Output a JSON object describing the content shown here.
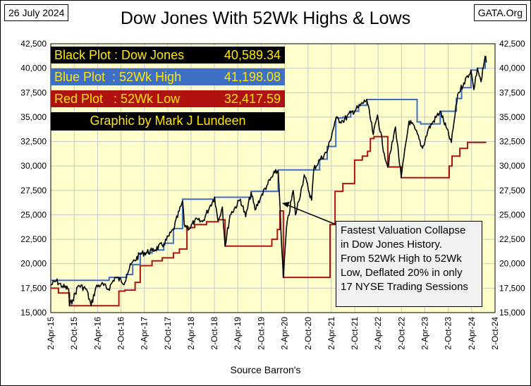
{
  "header": {
    "date": "26 July 2024",
    "source_tag": "GATA.Org",
    "title": "Dow Jones With 52Wk Highs & Lows"
  },
  "legend": {
    "black": {
      "label": "Black Plot : Dow Jones",
      "value": "40,589.34",
      "text_color": "#ffe600",
      "bg": "#000000"
    },
    "blue": {
      "label": "Blue Plot  : 52Wk High",
      "value": "41,198.08",
      "text_color": "#ffe600",
      "bg": "#3d6fc4"
    },
    "red": {
      "label": "Red Plot   : 52Wk Low",
      "value": "32,417.59",
      "text_color": "#ffe600",
      "bg": "#b01212"
    },
    "credit": {
      "label": "Graphic by Mark J Lundeen",
      "text_color": "#ffe600",
      "bg": "#000000"
    }
  },
  "annotation": {
    "lines": [
      "Fastest Valuation Collapse",
      "in Dow Jones History.",
      "From 52Wk High to 52Wk",
      "Low, Deflated 20% in only",
      "17 NYSE Trading Sessions"
    ],
    "points_to": "2020-03-01"
  },
  "xlabel": "Source Barron's",
  "colors": {
    "plot_bg": "#ffffcc",
    "grid": "#c8c8c8",
    "dow": "#000000",
    "high": "#3d6fc4",
    "low": "#b01212"
  },
  "chart_data": {
    "type": "line",
    "title": "Dow Jones With 52Wk Highs & Lows",
    "xlabel": "Source Barron's",
    "ylabel": "",
    "ylim": [
      15000,
      42500
    ],
    "yticks": [
      15000,
      17500,
      20000,
      22500,
      25000,
      27500,
      30000,
      32500,
      35000,
      37500,
      40000,
      42500
    ],
    "ytick_labels": [
      "15,000",
      "17,500",
      "20,000",
      "22,500",
      "25,000",
      "27,500",
      "30,000",
      "32,500",
      "35,000",
      "37,500",
      "40,000",
      "42,500"
    ],
    "xlim": [
      "2015-04-02",
      "2024-10-02"
    ],
    "xtick_labels": [
      "2-Apr-15",
      "2-Oct-15",
      "2-Apr-16",
      "2-Oct-16",
      "2-Apr-17",
      "2-Oct-17",
      "2-Apr-18",
      "2-Oct-18",
      "2-Apr-19",
      "2-Oct-19",
      "2-Apr-20",
      "2-Oct-20",
      "2-Apr-21",
      "2-Oct-21",
      "2-Apr-22",
      "2-Oct-22",
      "2-Apr-23",
      "2-Oct-23",
      "2-Apr-24",
      "2-Oct-24"
    ],
    "grid": true,
    "series": [
      {
        "name": "Dow Jones",
        "color": "#000000",
        "x": [
          "2015-04-02",
          "2015-05-15",
          "2015-07-01",
          "2015-08-20",
          "2015-08-26",
          "2015-09-20",
          "2015-11-05",
          "2016-01-05",
          "2016-02-11",
          "2016-03-20",
          "2016-05-01",
          "2016-06-27",
          "2016-08-15",
          "2016-11-01",
          "2016-11-15",
          "2016-12-20",
          "2017-03-01",
          "2017-06-01",
          "2017-09-01",
          "2017-11-15",
          "2018-01-26",
          "2018-02-08",
          "2018-03-23",
          "2018-05-01",
          "2018-07-01",
          "2018-09-01",
          "2018-10-03",
          "2018-10-29",
          "2018-12-03",
          "2018-12-24",
          "2019-02-01",
          "2019-04-23",
          "2019-06-03",
          "2019-07-15",
          "2019-08-15",
          "2019-10-01",
          "2019-11-15",
          "2020-01-17",
          "2020-02-12",
          "2020-02-28",
          "2020-03-12",
          "2020-03-23",
          "2020-04-17",
          "2020-06-08",
          "2020-06-26",
          "2020-08-15",
          "2020-09-02",
          "2020-10-30",
          "2020-11-16",
          "2021-01-01",
          "2021-03-01",
          "2021-05-07",
          "2021-07-01",
          "2021-09-01",
          "2021-11-01",
          "2022-01-04",
          "2022-02-24",
          "2022-03-29",
          "2022-05-20",
          "2022-06-17",
          "2022-08-16",
          "2022-09-30",
          "2022-11-30",
          "2023-01-15",
          "2023-03-15",
          "2023-05-01",
          "2023-07-31",
          "2023-10-27",
          "2023-12-15",
          "2024-02-01",
          "2024-03-28",
          "2024-04-19",
          "2024-05-17",
          "2024-06-15",
          "2024-07-17",
          "2024-07-26"
        ],
        "values": [
          17800,
          18250,
          17700,
          17400,
          15700,
          16300,
          17800,
          17400,
          15700,
          17600,
          17900,
          17400,
          18600,
          18100,
          18900,
          19900,
          21000,
          21300,
          22000,
          23500,
          26400,
          24000,
          23600,
          24400,
          24300,
          26000,
          26800,
          24400,
          25800,
          21800,
          25000,
          26600,
          24800,
          27300,
          25500,
          26900,
          28000,
          29300,
          29500,
          25400,
          21200,
          18600,
          23700,
          27500,
          25000,
          27900,
          29100,
          26500,
          29700,
          30600,
          31500,
          34800,
          34600,
          35400,
          36000,
          36800,
          33200,
          35200,
          31300,
          29900,
          34000,
          28800,
          34600,
          33800,
          31800,
          33800,
          35600,
          32400,
          37300,
          38500,
          39800,
          37800,
          40000,
          38600,
          41200,
          40589
        ]
      },
      {
        "name": "52Wk High",
        "color": "#3d6fc4",
        "x": [
          "2015-04-02",
          "2016-06-08",
          "2016-07-01",
          "2016-11-15",
          "2017-01-01",
          "2017-03-01",
          "2017-06-01",
          "2017-09-01",
          "2017-11-15",
          "2018-01-26",
          "2018-10-03",
          "2019-07-15",
          "2020-02-12",
          "2021-01-01",
          "2021-03-01",
          "2021-05-07",
          "2021-07-01",
          "2021-09-01",
          "2021-11-01",
          "2022-01-04",
          "2023-01-05",
          "2023-02-01",
          "2023-03-01",
          "2023-06-01",
          "2023-08-01",
          "2023-12-05",
          "2024-01-15",
          "2024-03-28",
          "2024-05-17",
          "2024-07-17",
          "2024-07-26"
        ],
        "values": [
          18300,
          18300,
          18600,
          18900,
          19900,
          21100,
          21400,
          22100,
          23600,
          26600,
          26800,
          27400,
          29600,
          30700,
          32000,
          34900,
          35000,
          35600,
          36200,
          36800,
          36800,
          34500,
          34300,
          34300,
          35600,
          36900,
          38000,
          39800,
          40000,
          41198,
          41198
        ]
      },
      {
        "name": "52Wk Low",
        "color": "#b01212",
        "x": [
          "2015-04-02",
          "2015-06-01",
          "2015-08-26",
          "2016-08-26",
          "2016-09-15",
          "2016-11-01",
          "2017-01-20",
          "2017-03-01",
          "2017-06-01",
          "2017-08-20",
          "2017-11-15",
          "2018-01-01",
          "2018-03-01",
          "2018-05-01",
          "2018-08-01",
          "2018-11-01",
          "2018-12-24",
          "2019-12-24",
          "2020-02-05",
          "2020-02-25",
          "2020-03-23",
          "2021-03-23",
          "2021-05-01",
          "2021-07-01",
          "2021-10-01",
          "2021-11-30",
          "2022-01-10",
          "2022-02-01",
          "2022-03-01",
          "2022-06-17",
          "2022-09-30",
          "2023-09-30",
          "2023-10-10",
          "2023-11-01",
          "2024-01-01",
          "2024-03-01",
          "2024-07-26"
        ],
        "values": [
          17500,
          17000,
          15700,
          15700,
          17200,
          17300,
          18100,
          19800,
          20300,
          20600,
          21100,
          21500,
          23700,
          24000,
          24300,
          24500,
          21800,
          22500,
          23500,
          25400,
          18600,
          24000,
          27400,
          28200,
          30600,
          31000,
          31500,
          32800,
          33000,
          29900,
          28800,
          28800,
          30000,
          31000,
          31800,
          32417,
          32417
        ]
      }
    ],
    "annotations": [
      {
        "text": "Fastest Valuation Collapse in Dow Jones History. From 52Wk High to 52Wk Low, Deflated 20% in only 17 NYSE Trading Sessions",
        "x": "2020-03-01",
        "y": 26200
      }
    ]
  }
}
